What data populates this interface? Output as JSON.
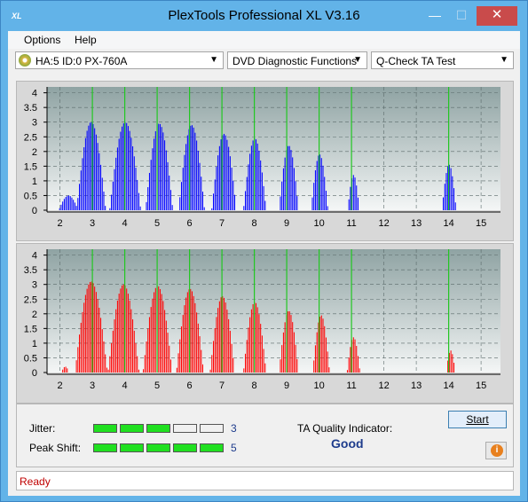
{
  "window": {
    "title": "PlexTools Professional XL V3.16",
    "app_icon": "XL"
  },
  "title_buttons": {
    "minimize": "—",
    "maximize": "☐",
    "close": "✕"
  },
  "menu": [
    {
      "label": "Options",
      "underline": "O"
    },
    {
      "label": "Help",
      "underline": "H"
    }
  ],
  "toolbar": {
    "drive": "HA:5 ID:0  PX-760A",
    "function": "DVD Diagnostic Functions",
    "test": "Q-Check TA Test"
  },
  "chart_data": [
    {
      "type": "bar",
      "name": "top",
      "x_ticks": [
        2,
        3,
        4,
        5,
        6,
        7,
        8,
        9,
        10,
        11,
        12,
        13,
        14,
        15
      ],
      "y_ticks": [
        "4",
        "3.5",
        "3",
        "2.5",
        "2",
        "1.5",
        "1",
        "0.5",
        "0"
      ],
      "ylim": [
        0,
        4.2
      ],
      "xlim": [
        1.6,
        15.6
      ],
      "grid": true,
      "color": "#0000ff",
      "peaks": [
        {
          "x": 2.25,
          "height": 0.5,
          "width": 0.3
        },
        {
          "x": 2.95,
          "height": 3.0,
          "width": 0.45
        },
        {
          "x": 4.0,
          "height": 3.0,
          "width": 0.48
        },
        {
          "x": 5.05,
          "height": 2.95,
          "width": 0.42
        },
        {
          "x": 6.05,
          "height": 2.9,
          "width": 0.4
        },
        {
          "x": 7.05,
          "height": 2.6,
          "width": 0.38
        },
        {
          "x": 8.0,
          "height": 2.45,
          "width": 0.35
        },
        {
          "x": 9.05,
          "height": 2.2,
          "width": 0.3
        },
        {
          "x": 10.0,
          "height": 1.9,
          "width": 0.26
        },
        {
          "x": 11.05,
          "height": 1.2,
          "width": 0.18
        },
        {
          "x": 14.0,
          "height": 1.55,
          "width": 0.22
        }
      ],
      "green_lines": [
        3,
        4,
        5,
        6,
        7,
        8,
        9,
        10,
        11,
        14
      ]
    },
    {
      "type": "bar",
      "name": "bottom",
      "x_ticks": [
        2,
        3,
        4,
        5,
        6,
        7,
        8,
        9,
        10,
        11,
        12,
        13,
        14,
        15
      ],
      "y_ticks": [
        "4",
        "3.5",
        "3",
        "2.5",
        "2",
        "1.5",
        "1",
        "0.5",
        "0"
      ],
      "ylim": [
        0,
        4.2
      ],
      "xlim": [
        1.6,
        15.6
      ],
      "grid": true,
      "color": "#ff0000",
      "peaks": [
        {
          "x": 2.15,
          "height": 0.2,
          "width": 0.12
        },
        {
          "x": 2.95,
          "height": 3.1,
          "width": 0.5
        },
        {
          "x": 3.95,
          "height": 3.0,
          "width": 0.48
        },
        {
          "x": 5.0,
          "height": 2.95,
          "width": 0.45
        },
        {
          "x": 6.0,
          "height": 2.85,
          "width": 0.42
        },
        {
          "x": 7.0,
          "height": 2.6,
          "width": 0.38
        },
        {
          "x": 8.0,
          "height": 2.4,
          "width": 0.35
        },
        {
          "x": 9.05,
          "height": 2.1,
          "width": 0.3
        },
        {
          "x": 10.05,
          "height": 1.95,
          "width": 0.26
        },
        {
          "x": 11.05,
          "height": 1.2,
          "width": 0.2
        },
        {
          "x": 14.05,
          "height": 0.75,
          "width": 0.14
        }
      ],
      "green_lines": [
        3,
        4,
        5,
        6,
        7,
        8,
        9,
        10,
        11,
        14
      ]
    }
  ],
  "results": {
    "jitter_label": "Jitter:",
    "jitter_value": "3",
    "jitter_bars": 3,
    "peak_label": "Peak Shift:",
    "peak_value": "5",
    "peak_bars": 5,
    "bar_total": 5,
    "ta_label": "TA Quality Indicator:",
    "ta_value": "Good",
    "start_label": "Start",
    "info_icon": "i"
  },
  "status": {
    "text": "Ready"
  }
}
